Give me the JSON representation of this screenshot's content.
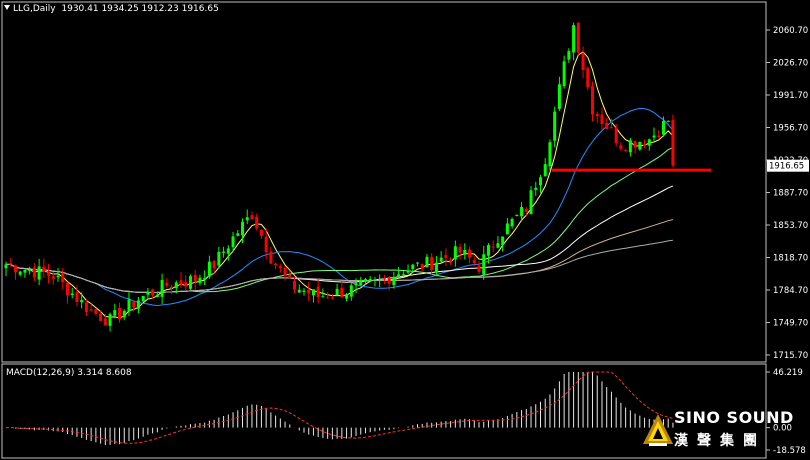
{
  "header": {
    "symbol_label": "LLG,Daily",
    "ohlc_label": "1930.41 1934.25 1912.23 1916.65"
  },
  "macd_header": {
    "label": "MACD(12,26,9) 3.314 8.608"
  },
  "brand": {
    "wordmark": "SINO SOUND",
    "chinese": "漢聲集團"
  },
  "colors": {
    "background": "#000000",
    "bull_candle": "#00ff00",
    "bear_candle": "#ff0000",
    "ma_yellow": "#ffff66",
    "ma_blue": "#1e90ff",
    "ma_green": "#7cfc7c",
    "ma_white": "#ffffff",
    "ma_tan": "#d2b48c",
    "ma_grey": "#b0a8a8",
    "support_line": "#ff0000",
    "macd_hist": "#e8e8e8",
    "macd_signal": "#ff3030",
    "axis": "#c0c0c0"
  },
  "chart_data": [
    {
      "type": "candlestick",
      "title": "LLG,Daily",
      "y_axis_labels": [
        "2060.70",
        "2026.70",
        "1991.70",
        "1956.70",
        "1922.70",
        "1887.70",
        "1853.70",
        "1818.70",
        "1784.70",
        "1749.70",
        "1715.70"
      ],
      "current_price_label": "1916.65",
      "ylim": [
        1710,
        2075
      ],
      "grid": false,
      "support_level": 1912,
      "x_count": 142,
      "legend": "none"
    },
    {
      "type": "macd",
      "title": "MACD(12,26,9)",
      "params": [
        12,
        26,
        9
      ],
      "macd_value": 3.314,
      "signal_value": 8.608,
      "y_axis_labels": [
        "46.219",
        "0.00",
        "-18.578"
      ],
      "ylim": [
        -18.578,
        46.219
      ]
    }
  ]
}
